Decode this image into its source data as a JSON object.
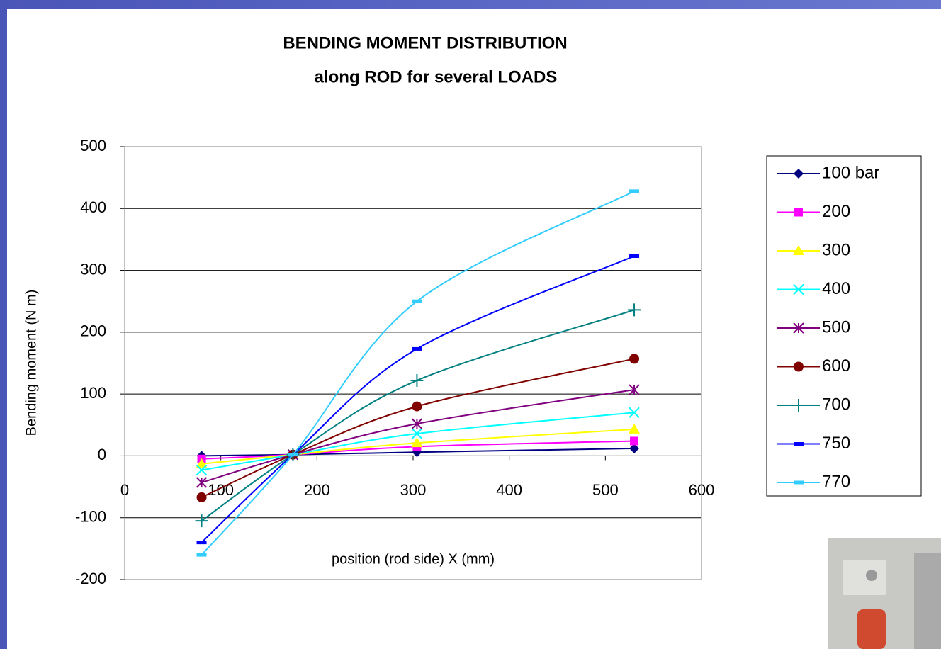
{
  "chart_data": {
    "type": "line",
    "title": [
      "BENDING MOMENT DISTRIBUTION",
      "along ROD for several LOADS"
    ],
    "x_label": "position (rod side) X (mm)",
    "y_label": "Bending moment (N m)",
    "x": [
      80,
      175,
      304,
      530
    ],
    "xlim": [
      0,
      600
    ],
    "xticks": [
      0,
      100,
      200,
      300,
      400,
      500,
      600
    ],
    "ylim": [
      -200,
      500
    ],
    "yticks": [
      -200,
      -100,
      0,
      100,
      200,
      300,
      400,
      500
    ],
    "grid": true,
    "smooth": true,
    "series": [
      {
        "name": "100 bar",
        "color": "#000080",
        "marker": "diamond",
        "values": [
          0,
          2,
          6,
          12
        ]
      },
      {
        "name": "200",
        "color": "#ff00ff",
        "marker": "square",
        "values": [
          -5,
          2,
          15,
          24
        ]
      },
      {
        "name": "300",
        "color": "#ffff00",
        "marker": "triangle",
        "values": [
          -13,
          2,
          21,
          43
        ]
      },
      {
        "name": "400",
        "color": "#00ffff",
        "marker": "x",
        "values": [
          -23,
          2,
          36,
          70
        ]
      },
      {
        "name": "500",
        "color": "#800080",
        "marker": "star",
        "values": [
          -43,
          2,
          52,
          107
        ]
      },
      {
        "name": "600",
        "color": "#800000",
        "marker": "circle",
        "values": [
          -67,
          2,
          80,
          157
        ]
      },
      {
        "name": "700",
        "color": "#008080",
        "marker": "plus",
        "values": [
          -105,
          2,
          122,
          236
        ]
      },
      {
        "name": "750",
        "color": "#0000ff",
        "marker": "dash",
        "values": [
          -140,
          2,
          173,
          323
        ]
      },
      {
        "name": "770",
        "color": "#33ccff",
        "marker": "dash",
        "values": [
          -160,
          2,
          250,
          428
        ]
      }
    ]
  }
}
